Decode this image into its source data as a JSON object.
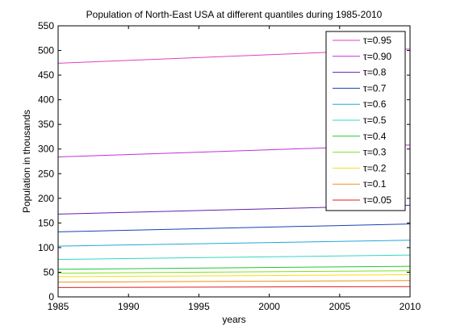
{
  "chart_data": {
    "type": "line",
    "title": "Population of North-East USA at different quantiles during 1985-2010",
    "xlabel": "years",
    "ylabel": "Population in thousands",
    "xlim": [
      1985,
      2010
    ],
    "ylim": [
      0,
      550
    ],
    "x_ticks": [
      "1985",
      "1990",
      "1995",
      "2000",
      "2005",
      "2010"
    ],
    "y_ticks": [
      "0",
      "50",
      "100",
      "150",
      "200",
      "250",
      "300",
      "350",
      "400",
      "450",
      "500",
      "550"
    ],
    "grid": false,
    "legend_position": "top-right",
    "x": [
      1985,
      2010
    ],
    "series": [
      {
        "name": "τ=0.95",
        "color": "#e040c0",
        "values": [
          474,
          503
        ]
      },
      {
        "name": "τ=0.90",
        "color": "#c030d8",
        "values": [
          284,
          308
        ]
      },
      {
        "name": "τ=0.8",
        "color": "#6020b0",
        "values": [
          168,
          186
        ]
      },
      {
        "name": "τ=0.7",
        "color": "#1c40b0",
        "values": [
          132,
          148
        ]
      },
      {
        "name": "τ=0.6",
        "color": "#20a8d8",
        "values": [
          103,
          115
        ]
      },
      {
        "name": "τ=0.5",
        "color": "#30d8c0",
        "values": [
          76,
          85
        ]
      },
      {
        "name": "τ=0.4",
        "color": "#20c830",
        "values": [
          56,
          62
        ]
      },
      {
        "name": "τ=0.3",
        "color": "#80e020",
        "values": [
          48,
          53
        ]
      },
      {
        "name": "τ=0.2",
        "color": "#f0e020",
        "values": [
          41,
          45
        ]
      },
      {
        "name": "τ=0.1",
        "color": "#f09010",
        "values": [
          30,
          33
        ]
      },
      {
        "name": "τ=0.05",
        "color": "#e02020",
        "values": [
          19,
          21
        ]
      }
    ]
  }
}
